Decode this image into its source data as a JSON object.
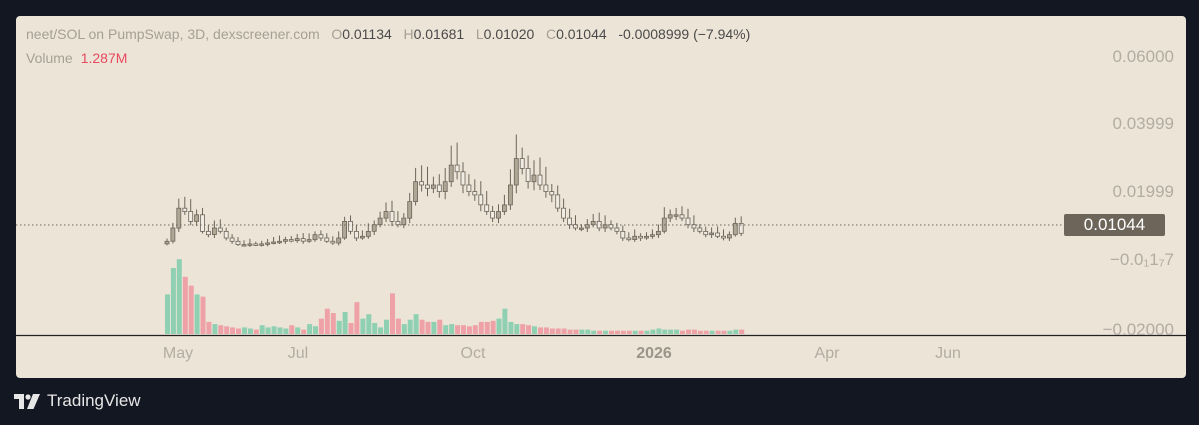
{
  "legend": {
    "pair": "neet/SOL on PumpSwap, 3D, dexscreener.com",
    "o_label": "O",
    "o_value": "0.01134",
    "h_label": "H",
    "h_value": "0.01681",
    "l_label": "L",
    "l_value": "0.01020",
    "c_label": "C",
    "c_value": "0.01044",
    "change": "-0.0008999 (−7.94%)",
    "volume_label": "Volume",
    "volume_value": "1.287M"
  },
  "price_axis": {
    "labels": [
      "0.06000",
      "0.03999",
      "0.01999",
      "−0.0₁1₇7",
      "−0.02000"
    ],
    "last_price": "0.01044"
  },
  "time_axis": {
    "labels": [
      "May",
      "Jul",
      "Oct",
      "2026",
      "Apr",
      "Jun"
    ]
  },
  "brand": {
    "name": "TradingView"
  },
  "colors": {
    "background": "#ece4d7",
    "candle": "#b0a696",
    "candle_border": "#6d655a",
    "volume_up": "#8fd0b3",
    "volume_down": "#eea2a8",
    "last_price_tag": "#6d655a"
  },
  "chart_data": {
    "type": "candlestick",
    "title": "neet/SOL on PumpSwap, 3D, dexscreener.com",
    "interval": "3D",
    "ylim": [
      -0.02,
      0.07
    ],
    "y_ticks": [
      0.06,
      0.03999,
      0.01999,
      -1.7e-06,
      -0.02
    ],
    "last_close": 0.01044,
    "legend_position": "top-left",
    "grid": false,
    "x_labels": [
      "May",
      "Jul",
      "Oct",
      "2026",
      "Apr",
      "Jun"
    ],
    "series": [
      {
        "close": [
          0.008,
          0.012,
          0.018,
          0.017,
          0.014,
          0.016,
          0.011,
          0.01,
          0.012,
          0.011,
          0.009,
          0.008,
          0.007,
          0.007,
          0.0072,
          0.007,
          0.0072,
          0.0075,
          0.0078,
          0.008,
          0.0085,
          0.0082,
          0.0088,
          0.008,
          0.0085,
          0.01,
          0.009,
          0.008,
          0.0075,
          0.009,
          0.014,
          0.011,
          0.009,
          0.0095,
          0.011,
          0.013,
          0.015,
          0.017,
          0.014,
          0.013,
          0.015,
          0.02,
          0.026,
          0.025,
          0.024,
          0.025,
          0.023,
          0.026,
          0.031,
          0.029,
          0.025,
          0.023,
          0.022,
          0.019,
          0.017,
          0.015,
          0.017,
          0.019,
          0.025,
          0.033,
          0.03,
          0.026,
          0.028,
          0.025,
          0.023,
          0.022,
          0.018,
          0.015,
          0.013,
          0.012,
          0.012,
          0.013,
          0.014,
          0.012,
          0.013,
          0.012,
          0.011,
          0.009,
          0.0085,
          0.0095,
          0.009,
          0.0095,
          0.01,
          0.011,
          0.015,
          0.016,
          0.016,
          0.015,
          0.013,
          0.012,
          0.011,
          0.01,
          0.0105,
          0.0095,
          0.009,
          0.01,
          0.0134,
          0.0104
        ]
      },
      {
        "volume": [
          3.6,
          6.0,
          6.8,
          5.2,
          4.4,
          3.6,
          3.4,
          1.1,
          0.9,
          0.8,
          0.7,
          0.6,
          0.5,
          0.6,
          0.5,
          0.4,
          0.8,
          0.6,
          0.7,
          0.6,
          0.5,
          0.8,
          0.6,
          0.4,
          0.9,
          0.7,
          1.4,
          2.3,
          1.9,
          1.2,
          2.0,
          1.0,
          2.9,
          1.4,
          1.8,
          1.0,
          0.6,
          1.3,
          3.7,
          1.4,
          0.9,
          1.3,
          1.8,
          1.3,
          1.1,
          1.1,
          1.3,
          0.8,
          0.9,
          0.8,
          0.8,
          0.7,
          0.8,
          1.1,
          1.1,
          1.2,
          1.4,
          2.3,
          1.1,
          0.9,
          0.9,
          0.8,
          0.7,
          0.6,
          0.6,
          0.5,
          0.5,
          0.5,
          0.4,
          0.4,
          0.4,
          0.4,
          0.3,
          0.3,
          0.3,
          0.3,
          0.3,
          0.3,
          0.3,
          0.3,
          0.3,
          0.3,
          0.4,
          0.5,
          0.4,
          0.4,
          0.4,
          0.3,
          0.4,
          0.4,
          0.3,
          0.3,
          0.3,
          0.3,
          0.3,
          0.3,
          0.4,
          0.4
        ]
      }
    ]
  }
}
